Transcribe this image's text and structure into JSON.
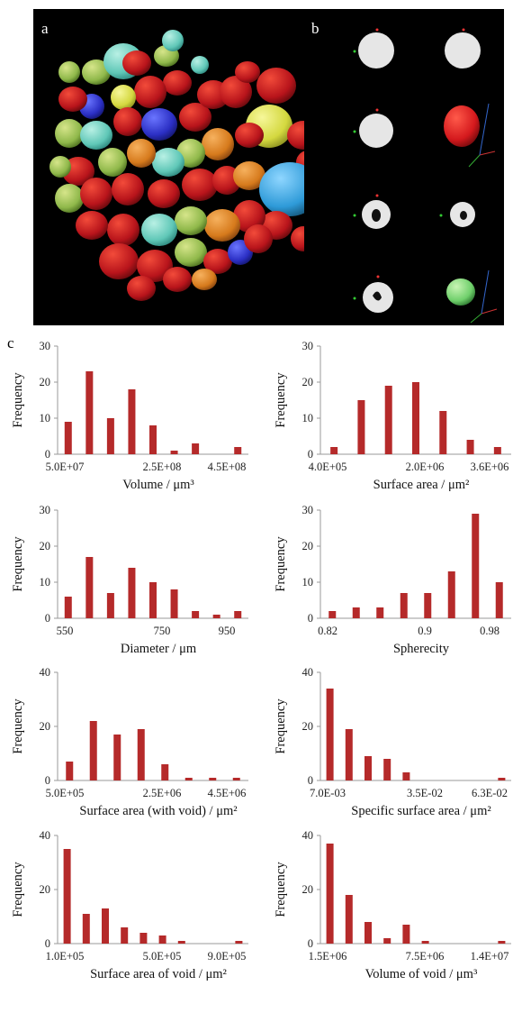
{
  "figure": {
    "panels": {
      "a": {
        "letter": "a"
      },
      "b": {
        "letter": "b"
      },
      "c": {
        "letter": "c"
      }
    }
  },
  "colors": {
    "bar": "#b52a2a",
    "axis": "#9a9a9a",
    "panel_bg": "#000000"
  },
  "chart_data": [
    {
      "type": "bar",
      "ylabel": "Frequency",
      "xlabel": "Volume / μm³",
      "ylim": [
        0,
        30
      ],
      "yticks": [
        0,
        10,
        20,
        30
      ],
      "xticks": [
        "5.0E+07",
        "2.5E+08",
        "4.5E+08"
      ],
      "values": [
        9,
        23,
        10,
        18,
        8,
        1,
        3,
        0,
        2
      ]
    },
    {
      "type": "bar",
      "ylabel": "Frequency",
      "xlabel": "Surface area / μm²",
      "ylim": [
        0,
        30
      ],
      "yticks": [
        0,
        10,
        20,
        30
      ],
      "xticks": [
        "4.0E+05",
        "2.0E+06",
        "3.6E+06"
      ],
      "values": [
        2,
        15,
        19,
        20,
        12,
        4,
        2
      ]
    },
    {
      "type": "bar",
      "ylabel": "Frequency",
      "xlabel": "Diameter / μm",
      "ylim": [
        0,
        30
      ],
      "yticks": [
        0,
        10,
        20,
        30
      ],
      "xticks": [
        "550",
        "750",
        "950"
      ],
      "values": [
        6,
        17,
        7,
        14,
        10,
        8,
        2,
        1,
        2
      ]
    },
    {
      "type": "bar",
      "ylabel": "Frequency",
      "xlabel": "Spherecity",
      "ylim": [
        0,
        30
      ],
      "yticks": [
        0,
        10,
        20,
        30
      ],
      "xticks": [
        "0.82",
        "0.9",
        "0.98"
      ],
      "values": [
        2,
        3,
        3,
        7,
        7,
        13,
        29,
        10
      ]
    },
    {
      "type": "bar",
      "ylabel": "Frequency",
      "xlabel": "Surface area (with void) / μm²",
      "ylim": [
        0,
        40
      ],
      "yticks": [
        0,
        20,
        40
      ],
      "xticks": [
        "5.0E+05",
        "2.5E+06",
        "4.5E+06"
      ],
      "values": [
        7,
        22,
        17,
        19,
        6,
        1,
        1,
        1
      ]
    },
    {
      "type": "bar",
      "ylabel": "Frequency",
      "xlabel": "Specific surface area / μm²",
      "ylim": [
        0,
        40
      ],
      "yticks": [
        0,
        20,
        40
      ],
      "xticks": [
        "7.0E-03",
        "3.5E-02",
        "6.3E-02"
      ],
      "values": [
        34,
        19,
        9,
        8,
        3,
        0,
        0,
        0,
        0,
        1
      ]
    },
    {
      "type": "bar",
      "ylabel": "Frequency",
      "xlabel": "Surface area of void / μm²",
      "ylim": [
        0,
        40
      ],
      "yticks": [
        0,
        20,
        40
      ],
      "xticks": [
        "1.0E+05",
        "5.0E+05",
        "9.0E+05"
      ],
      "values": [
        35,
        11,
        13,
        6,
        4,
        3,
        1,
        0,
        0,
        1
      ]
    },
    {
      "type": "bar",
      "ylabel": "Frequency",
      "xlabel": "Volume of void / μm³",
      "ylim": [
        0,
        40
      ],
      "yticks": [
        0,
        20,
        40
      ],
      "xticks": [
        "1.5E+06",
        "7.5E+06",
        "1.4E+07"
      ],
      "values": [
        37,
        18,
        8,
        2,
        7,
        1,
        0,
        0,
        0,
        1
      ]
    }
  ]
}
